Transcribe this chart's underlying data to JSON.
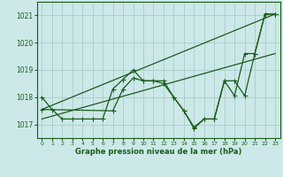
{
  "xlabel": "Graphe pression niveau de la mer (hPa)",
  "bg_color": "#cce8e8",
  "grid_color": "#aacccc",
  "line_color": "#1a5c1a",
  "xlim": [
    -0.5,
    23.5
  ],
  "ylim": [
    1016.5,
    1021.5
  ],
  "yticks": [
    1017,
    1018,
    1019,
    1020,
    1021
  ],
  "xticks": [
    0,
    1,
    2,
    3,
    4,
    5,
    6,
    7,
    8,
    9,
    10,
    11,
    12,
    13,
    14,
    15,
    16,
    17,
    18,
    19,
    20,
    21,
    22,
    23
  ],
  "series": [
    {
      "x": [
        0,
        1,
        2,
        3,
        4,
        5,
        6,
        7,
        8,
        9,
        10,
        11,
        12,
        13,
        14,
        15,
        16,
        17,
        18,
        19,
        20,
        21,
        22,
        23
      ],
      "y": [
        1018.0,
        1017.55,
        1017.2,
        1017.2,
        1017.2,
        1017.2,
        1017.2,
        1018.3,
        1018.65,
        1019.0,
        1018.6,
        1018.6,
        1018.6,
        1018.0,
        1017.5,
        1016.9,
        1017.2,
        1017.2,
        1018.6,
        1018.05,
        1019.6,
        1019.6,
        1021.05,
        1021.05
      ],
      "marker": true
    },
    {
      "x": [
        0,
        7,
        8,
        9,
        10,
        11,
        12,
        13,
        14,
        15,
        16,
        17,
        18,
        19,
        20,
        21,
        22,
        23
      ],
      "y": [
        1017.55,
        1017.5,
        1018.3,
        1018.7,
        1018.6,
        1018.6,
        1018.5,
        1018.0,
        1017.5,
        1016.85,
        1017.2,
        1017.2,
        1018.6,
        1018.6,
        1018.05,
        1019.6,
        1021.05,
        1021.05
      ],
      "marker": true
    },
    {
      "x": [
        0,
        23
      ],
      "y": [
        1017.55,
        1021.05
      ],
      "marker": false
    },
    {
      "x": [
        0,
        23
      ],
      "y": [
        1017.2,
        1019.6
      ],
      "marker": false
    }
  ]
}
